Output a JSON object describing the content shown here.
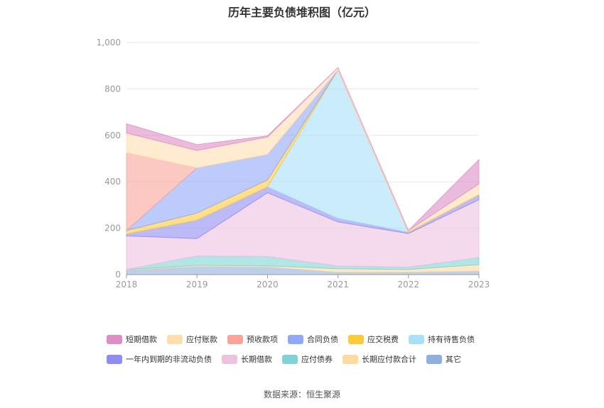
{
  "chart_data": {
    "type": "area",
    "stacked": true,
    "title": "历年主要负债堆积图（亿元）",
    "categories": [
      "2018",
      "2019",
      "2020",
      "2021",
      "2022",
      "2023"
    ],
    "ylim": [
      0,
      1000
    ],
    "yticks": [
      "0",
      "200",
      "400",
      "600",
      "800",
      "1,000"
    ],
    "grid": true,
    "legend_position": "bottom",
    "series": [
      {
        "name": "其它",
        "color": "#8FB0DD",
        "values": [
          20,
          35,
          33,
          10,
          10,
          15
        ]
      },
      {
        "name": "长期应付款合计",
        "color": "#FFD9A0",
        "values": [
          2,
          5,
          5,
          15,
          12,
          28
        ]
      },
      {
        "name": "应付债券",
        "color": "#7DD3D5",
        "values": [
          0,
          40,
          40,
          12,
          10,
          30
        ]
      },
      {
        "name": "长期借款",
        "color": "#ECC2E0",
        "values": [
          145,
          75,
          275,
          190,
          145,
          250
        ]
      },
      {
        "name": "一年内到期的非流动负债",
        "color": "#8F8CF2",
        "values": [
          8,
          80,
          25,
          15,
          5,
          20
        ]
      },
      {
        "name": "持有待售负债",
        "color": "#A8E0F7",
        "values": [
          0,
          0,
          0,
          640,
          0,
          0
        ]
      },
      {
        "name": "应交税费",
        "color": "#FFC93C",
        "values": [
          15,
          30,
          30,
          0,
          3,
          3
        ]
      },
      {
        "name": "合同负债",
        "color": "#90A8F8",
        "values": [
          0,
          195,
          110,
          0,
          0,
          0
        ]
      },
      {
        "name": "预收款项",
        "color": "#F9A39A",
        "values": [
          335,
          0,
          0,
          0,
          0,
          0
        ]
      },
      {
        "name": "应付账款",
        "color": "#FFDDAF",
        "values": [
          85,
          75,
          75,
          10,
          5,
          45
        ]
      },
      {
        "name": "短期借款",
        "color": "#DD8EC6",
        "values": [
          40,
          25,
          5,
          0,
          0,
          105
        ]
      }
    ],
    "legend_order": [
      "短期借款",
      "应付账款",
      "预收款项",
      "合同负债",
      "应交税费",
      "持有待售负债",
      "一年内到期的非流动负债",
      "长期借款",
      "应付债券",
      "长期应付款合计",
      "其它"
    ]
  },
  "source_label": "数据来源：恒生聚源"
}
